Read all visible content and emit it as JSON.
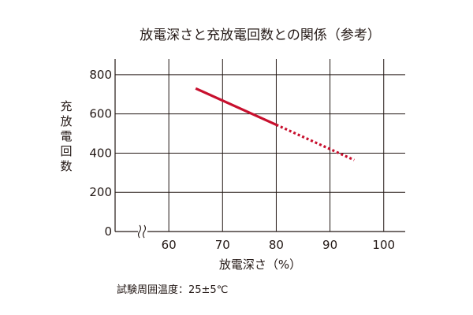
{
  "chart_data": {
    "type": "line",
    "title": "放電深さと充放電回数との関係（参考）",
    "xlabel": "放電深さ（%）",
    "ylabel": "充放電回数",
    "x_ticks": [
      60,
      70,
      80,
      90,
      100
    ],
    "y_ticks": [
      0,
      200,
      400,
      600,
      800
    ],
    "xlim": [
      50,
      104
    ],
    "ylim": [
      0,
      880
    ],
    "x_axis_break": true,
    "grid": true,
    "line_color": "#c8102e",
    "series": [
      {
        "style": "solid",
        "points": [
          {
            "x": 65,
            "y": 730
          },
          {
            "x": 80,
            "y": 545
          }
        ]
      },
      {
        "style": "dotted",
        "points": [
          {
            "x": 80,
            "y": 545
          },
          {
            "x": 94.5,
            "y": 365
          }
        ]
      }
    ],
    "note": "試験周囲温度：25±5℃"
  }
}
